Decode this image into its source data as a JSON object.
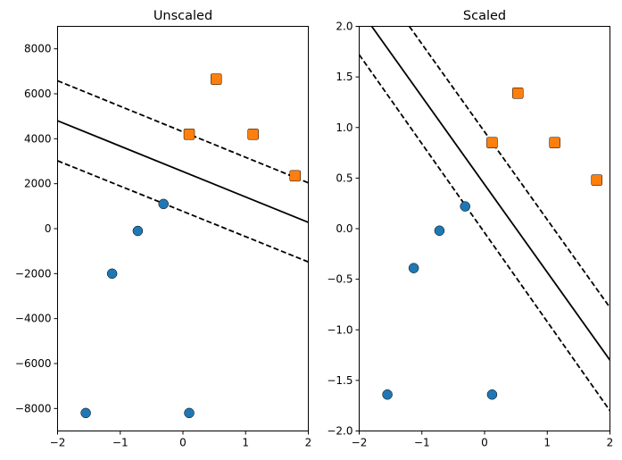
{
  "chart_data": [
    {
      "type": "scatter",
      "title": "Unscaled",
      "xlim": [
        -2,
        2
      ],
      "ylim": [
        -9000,
        9000
      ],
      "xticks": [
        -2,
        -1,
        0,
        1,
        2
      ],
      "xtick_labels": [
        "−2",
        "−1",
        "0",
        "1",
        "2"
      ],
      "yticks": [
        -8000,
        -6000,
        -4000,
        -2000,
        0,
        2000,
        4000,
        6000,
        8000
      ],
      "ytick_labels": [
        "−8000",
        "−6000",
        "−4000",
        "−2000",
        "0",
        "2000",
        "4000",
        "6000",
        "8000"
      ],
      "grid": false,
      "series": [
        {
          "marker": "circle",
          "color": "#1f77b4",
          "x": [
            -1.55,
            -1.13,
            -0.72,
            -0.31,
            0.1
          ],
          "y": [
            -8200,
            -2000,
            -100,
            1100,
            -8200
          ]
        },
        {
          "marker": "square",
          "color": "#ff7f0e",
          "x": [
            0.1,
            0.53,
            1.12,
            1.79
          ],
          "y": [
            4200,
            6650,
            4200,
            2350
          ]
        }
      ],
      "lines": [
        {
          "style": "solid",
          "x": [
            -2,
            2
          ],
          "y": [
            4800,
            280
          ]
        },
        {
          "style": "dashed",
          "x": [
            -2,
            2
          ],
          "y": [
            6580,
            2040
          ]
        },
        {
          "style": "dashed",
          "x": [
            -2,
            2
          ],
          "y": [
            3020,
            -1480
          ]
        }
      ]
    },
    {
      "type": "scatter",
      "title": "Scaled",
      "xlim": [
        -2,
        2
      ],
      "ylim": [
        -2.0,
        2.0
      ],
      "xticks": [
        -2,
        -1,
        0,
        1,
        2
      ],
      "xtick_labels": [
        "−2",
        "−1",
        "0",
        "1",
        "2"
      ],
      "yticks": [
        -2.0,
        -1.5,
        -1.0,
        -0.5,
        0.0,
        0.5,
        1.0,
        1.5,
        2.0
      ],
      "ytick_labels": [
        "−2.0",
        "−1.5",
        "−1.0",
        "−0.5",
        "0.0",
        "0.5",
        "1.0",
        "1.5",
        "2.0"
      ],
      "grid": false,
      "series": [
        {
          "marker": "circle",
          "color": "#1f77b4",
          "x": [
            -1.55,
            -1.13,
            -0.72,
            -0.31,
            0.12
          ],
          "y": [
            -1.64,
            -0.39,
            -0.02,
            0.22,
            -1.64
          ]
        },
        {
          "marker": "square",
          "color": "#ff7f0e",
          "x": [
            0.12,
            0.53,
            1.12,
            1.79
          ],
          "y": [
            0.85,
            1.34,
            0.85,
            0.48
          ]
        }
      ],
      "lines": [
        {
          "style": "solid",
          "x": [
            -1.8,
            2
          ],
          "y": [
            2.0,
            -1.3
          ]
        },
        {
          "style": "dashed",
          "x": [
            -1.2,
            2
          ],
          "y": [
            2.0,
            -0.78
          ]
        },
        {
          "style": "dashed",
          "x": [
            -2,
            2
          ],
          "y": [
            1.72,
            -1.8
          ]
        }
      ]
    }
  ]
}
